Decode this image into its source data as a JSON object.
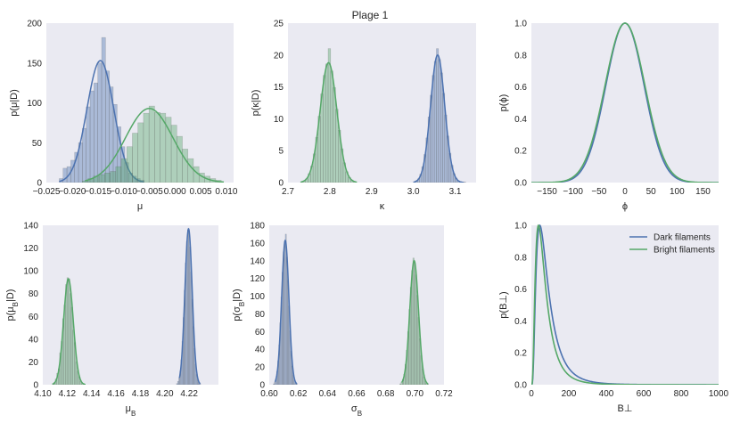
{
  "figure_title": "Plage 1",
  "colors": {
    "background": "#eaeaf2",
    "dark": "#4c72b0",
    "bright": "#55a868"
  },
  "legend": {
    "placement": "top-right",
    "entries": [
      {
        "label": "Dark filaments",
        "color": "#4c72b0"
      },
      {
        "label": "Bright filaments",
        "color": "#55a868"
      }
    ]
  },
  "chart_data": [
    {
      "type": "bar",
      "panel": "mu",
      "xlabel": "μ",
      "ylabel": "p(μ|D)",
      "xlim": [
        -0.025,
        0.0114
      ],
      "ylim": [
        0,
        200
      ],
      "grid": false,
      "xticks": [
        -0.025,
        -0.02,
        -0.015,
        -0.01,
        -0.005,
        0.0,
        0.005,
        0.01
      ],
      "xticklabels": [
        "−0.025",
        "−0.020",
        "−0.015",
        "−0.010",
        "−0.005",
        "0.000",
        "0.005",
        "0.010"
      ],
      "yticks": [
        0,
        50,
        100,
        150,
        200
      ],
      "yticklabels": [
        "0",
        "50",
        "100",
        "150",
        "200"
      ],
      "series": [
        {
          "color": "#4c72b0",
          "hist": {
            "start": -0.0225,
            "bin_width": 0.00075,
            "values": [
              5,
              18,
              20,
              28,
              38,
              50,
              68,
              95,
              115,
              125,
              150,
              182,
              140,
              120,
              98,
              70,
              45,
              25,
              12,
              8,
              5,
              3
            ]
          },
          "kde": {
            "mean": -0.0145,
            "sd": 0.0026,
            "peak": 153,
            "range": [
              -0.0225,
              -0.006
            ]
          }
        },
        {
          "color": "#55a868",
          "hist": {
            "start": -0.018,
            "bin_width": 0.00108,
            "values": [
              2,
              5,
              8,
              10,
              12,
              14,
              20,
              30,
              45,
              62,
              75,
              87,
              96,
              88,
              87,
              82,
              72,
              58,
              42,
              30,
              20,
              12,
              8,
              5,
              3
            ]
          },
          "kde": {
            "mean": -0.005,
            "sd": 0.0046,
            "peak": 93,
            "range": [
              -0.0175,
              0.0095
            ]
          }
        }
      ]
    },
    {
      "type": "bar",
      "panel": "kappa",
      "xlabel": "κ",
      "ylabel": "p(κ|D)",
      "xlim": [
        2.7,
        3.15
      ],
      "ylim": [
        0,
        25
      ],
      "grid": false,
      "xticks": [
        2.7,
        2.8,
        2.9,
        3.0,
        3.1
      ],
      "xticklabels": [
        "2.7",
        "2.8",
        "2.9",
        "3.0",
        "3.1"
      ],
      "yticks": [
        0,
        5,
        10,
        15,
        20,
        25
      ],
      "yticklabels": [
        "0",
        "5",
        "10",
        "15",
        "20",
        "25"
      ],
      "series": [
        {
          "color": "#55a868",
          "hist": {
            "start": 2.73,
            "bin_width": 0.006,
            "values": [
              0.1,
              0.3,
              0.6,
              1.4,
              2.6,
              4.5,
              7.1,
              10.4,
              13.9,
              16.8,
              18.6,
              21,
              17.5,
              14.9,
              11.5,
              8.2,
              5.3,
              3.1,
              1.7,
              0.8,
              0.4,
              0.2
            ]
          },
          "kde": {
            "mean": 2.797,
            "sd": 0.02,
            "peak": 18.8,
            "range": [
              2.73,
              2.865
            ]
          }
        },
        {
          "color": "#4c72b0",
          "hist": {
            "start": 3.0,
            "bin_width": 0.005,
            "values": [
              0.1,
              0.3,
              0.6,
              1.3,
              2.5,
              4.4,
              7.0,
              10.3,
              13.7,
              16.8,
              19.0,
              21,
              19.3,
              17.2,
              14.0,
              10.6,
              7.3,
              4.6,
              2.7,
              1.4,
              0.7,
              0.3,
              0.15,
              0.1,
              0.1
            ]
          },
          "kde": {
            "mean": 3.058,
            "sd": 0.017,
            "peak": 20,
            "range": [
              3.0,
              3.12
            ]
          }
        }
      ]
    },
    {
      "type": "line",
      "panel": "phi",
      "xlabel": "ϕ",
      "ylabel": "p(ϕ)",
      "xlim": [
        -180,
        180
      ],
      "ylim": [
        0,
        1.0
      ],
      "grid": false,
      "xticks": [
        -150,
        -100,
        -50,
        0,
        50,
        100,
        150
      ],
      "xticklabels": [
        "−150",
        "−100",
        "−50",
        "0",
        "50",
        "100",
        "150"
      ],
      "yticks": [
        0,
        0.2,
        0.4,
        0.6,
        0.8,
        1.0
      ],
      "yticklabels": [
        "0.0",
        "0.2",
        "0.4",
        "0.6",
        "0.8",
        "1.0"
      ],
      "series": [
        {
          "color": "#4c72b0",
          "curve": {
            "kind": "gaussian",
            "mean": 0,
            "sd": 37,
            "peak": 1.0
          }
        },
        {
          "color": "#55a868",
          "curve": {
            "kind": "gaussian",
            "mean": 0,
            "sd": 38.5,
            "peak": 1.0
          }
        }
      ]
    },
    {
      "type": "bar",
      "panel": "mu_B",
      "xlabel": "μ_B",
      "ylabel": "p(μ_B|D)",
      "xlim": [
        4.1,
        4.244
      ],
      "ylim": [
        0,
        140
      ],
      "grid": false,
      "xticks": [
        4.1,
        4.12,
        4.14,
        4.16,
        4.18,
        4.2,
        4.22
      ],
      "xticklabels": [
        "4.10",
        "4.12",
        "4.14",
        "4.16",
        "4.18",
        "4.20",
        "4.22"
      ],
      "yticks": [
        0,
        20,
        40,
        60,
        80,
        100,
        120,
        140
      ],
      "yticklabels": [
        "0",
        "20",
        "40",
        "60",
        "80",
        "100",
        "120",
        "140"
      ],
      "series": [
        {
          "color": "#55a868",
          "hist": {
            "start": 4.1078,
            "bin_width": 0.0012,
            "values": [
              1,
              2,
              5,
              10,
              14,
              28,
              38,
              58,
              70,
              88,
              94,
              93,
              80,
              68,
              48,
              37,
              20,
              12,
              7,
              3,
              1,
              1
            ]
          },
          "kde": {
            "mean": 4.121,
            "sd": 0.004,
            "peak": 93,
            "range": [
              4.108,
              4.135
            ]
          }
        },
        {
          "color": "#4c72b0",
          "hist": {
            "start": 4.2096,
            "bin_width": 0.0009,
            "values": [
              1,
              3,
              6,
              12,
              22,
              38,
              59,
              83,
              107,
              126,
              136,
              134,
              121,
              99,
              75,
              51,
              32,
              18,
              9,
              4,
              2,
              1
            ]
          },
          "kde": {
            "mean": 4.2195,
            "sd": 0.003,
            "peak": 137,
            "range": [
              4.212,
              4.229
            ]
          }
        }
      ]
    },
    {
      "type": "bar",
      "panel": "sigma_B",
      "xlabel": "σ_B",
      "ylabel": "p(σ_B|D)",
      "xlim": [
        0.6,
        0.72
      ],
      "ylim": [
        0,
        180
      ],
      "grid": false,
      "xticks": [
        0.6,
        0.62,
        0.64,
        0.66,
        0.68,
        0.7,
        0.72
      ],
      "xticklabels": [
        "0.60",
        "0.62",
        "0.64",
        "0.66",
        "0.68",
        "0.70",
        "0.72"
      ],
      "yticks": [
        0,
        20,
        40,
        60,
        80,
        100,
        120,
        140,
        160,
        180
      ],
      "yticklabels": [
        "0",
        "20",
        "40",
        "60",
        "80",
        "100",
        "120",
        "140",
        "160",
        "180"
      ],
      "series": [
        {
          "color": "#4c72b0",
          "hist": {
            "start": 0.60275,
            "bin_width": 0.00075,
            "values": [
              1,
              3,
              7,
              15,
              27,
              45,
              70,
              99,
              127,
              150,
              162,
              170,
              144,
              118,
              89,
              61,
              38,
              21,
              11,
              5,
              2,
              1
            ]
          },
          "kde": {
            "mean": 0.611,
            "sd": 0.0025,
            "peak": 163,
            "range": [
              0.604,
              0.619
            ]
          }
        },
        {
          "color": "#55a868",
          "hist": {
            "start": 0.6896,
            "bin_width": 0.0009,
            "values": [
              1,
              3,
              6,
              12,
              23,
              39,
              60,
              85,
              110,
              129,
              143,
              138,
              124,
              101,
              76,
              52,
              33,
              18,
              9,
              4,
              2,
              1
            ]
          },
          "kde": {
            "mean": 0.6995,
            "sd": 0.003,
            "peak": 140,
            "range": [
              0.691,
              0.709
            ]
          }
        }
      ]
    },
    {
      "type": "line",
      "panel": "B_perp",
      "xlabel": "B⊥",
      "ylabel": "p(B⊥)",
      "xlim": [
        0,
        1000
      ],
      "ylim": [
        0,
        1.0
      ],
      "grid": false,
      "xticks": [
        0,
        200,
        400,
        600,
        800,
        1000
      ],
      "xticklabels": [
        "0",
        "200",
        "400",
        "600",
        "800",
        "1000"
      ],
      "yticks": [
        0,
        0.2,
        0.4,
        0.6,
        0.8,
        1.0
      ],
      "yticklabels": [
        "0.0",
        "0.2",
        "0.4",
        "0.6",
        "0.8",
        "1.0"
      ],
      "series": [
        {
          "name": "Dark filaments",
          "color": "#4c72b0",
          "curve": {
            "kind": "lognormal",
            "mode": 45,
            "sigma": 0.7,
            "peak": 1.0
          }
        },
        {
          "name": "Bright filaments",
          "color": "#55a868",
          "curve": {
            "kind": "lognormal",
            "mode": 38,
            "sigma": 0.7,
            "peak": 1.0
          }
        }
      ]
    }
  ]
}
